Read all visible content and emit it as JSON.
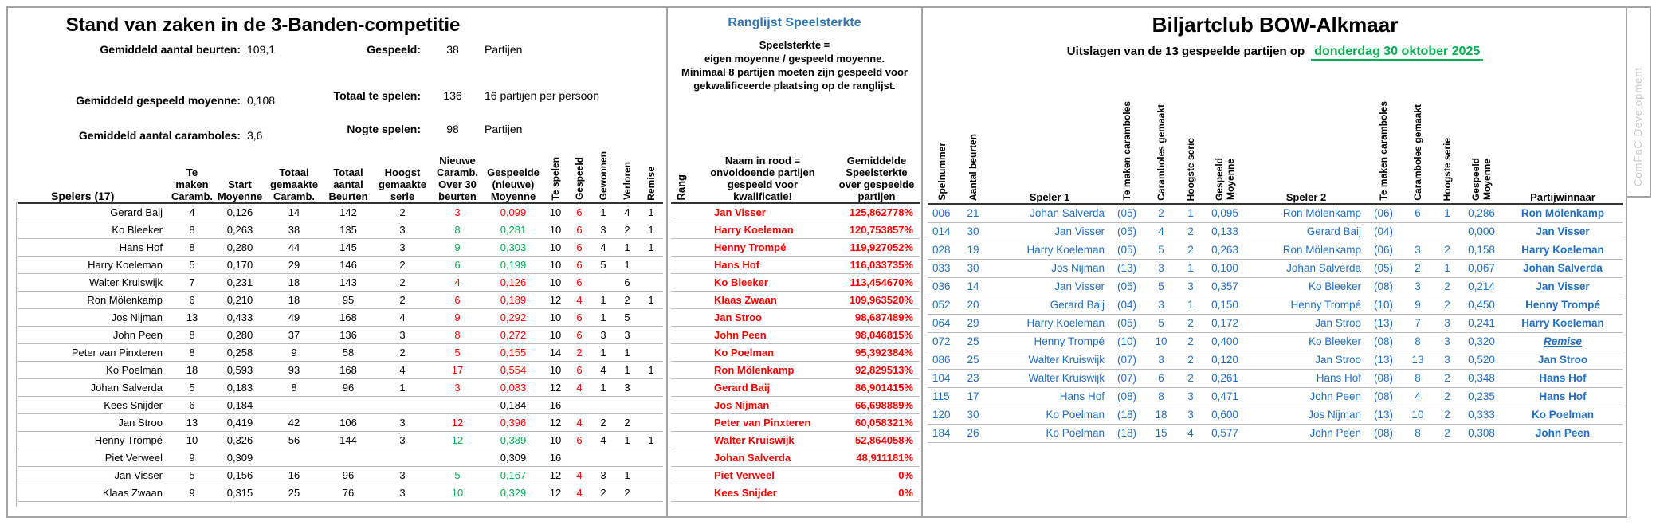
{
  "colors": {
    "red": "#FF0000",
    "green": "#00B050",
    "blue": "#1F6FC5",
    "title_blue": "#2E75B6",
    "date_green": "#00B050",
    "grid_gray": "#BDBDBD",
    "watermark_gray": "#C6C6C6"
  },
  "left_panel": {
    "title": "Stand van zaken in de 3-Banden-competitie",
    "stats": [
      {
        "label": "Gemiddeld aantal beurten:",
        "value": "109,1"
      },
      {
        "label": "Gemiddeld gespeeld moyenne:",
        "value": "0,108"
      },
      {
        "label": "Gemiddeld aantal caramboles:",
        "value": "3,6"
      }
    ],
    "totals": [
      {
        "label": "Gespeeld:",
        "value": "38",
        "note": "Partijen"
      },
      {
        "label": "Totaal te spelen:",
        "value": "136",
        "note": "16 partijen per persoon"
      },
      {
        "label": "Nogte spelen:",
        "value": "98",
        "note": "Partijen"
      }
    ],
    "table": {
      "headers": [
        "Spelers (17)",
        "Te\nmaken\nCaramb.",
        "Start\nMoyenne",
        "Totaal\ngemaakte\nCaramb.",
        "Totaal\naantal\nBeurten",
        "Hoogst\ngemaakte\nserie",
        "Nieuwe\nCaramb.\nOver 30\nbeurten",
        "Gespeelde\n(nieuwe)\nMoyenne"
      ],
      "vertical_headers": [
        "Te spelen",
        "Gespeeld",
        "Gewonnen",
        "Verloren",
        "Remise"
      ],
      "rows": [
        [
          "Gerard Baij",
          "4",
          "0,126",
          "14",
          "142",
          "2",
          {
            "t": "3",
            "c": "red"
          },
          {
            "t": "0,099",
            "c": "red"
          },
          "10",
          {
            "t": "6",
            "c": "red"
          },
          "1",
          "4",
          "1"
        ],
        [
          "Ko Bleeker",
          "8",
          "0,263",
          "38",
          "135",
          "3",
          {
            "t": "8",
            "c": "green"
          },
          {
            "t": "0,281",
            "c": "green"
          },
          "10",
          {
            "t": "6",
            "c": "red"
          },
          "3",
          "2",
          "1"
        ],
        [
          "Hans Hof",
          "8",
          "0,280",
          "44",
          "145",
          "3",
          {
            "t": "9",
            "c": "green"
          },
          {
            "t": "0,303",
            "c": "green"
          },
          "10",
          {
            "t": "6",
            "c": "red"
          },
          "4",
          "1",
          "1"
        ],
        [
          "Harry Koeleman",
          "5",
          "0,170",
          "29",
          "146",
          "2",
          {
            "t": "6",
            "c": "green"
          },
          {
            "t": "0,199",
            "c": "green"
          },
          "10",
          {
            "t": "6",
            "c": "red"
          },
          "5",
          "1",
          ""
        ],
        [
          "Walter Kruiswijk",
          "7",
          "0,231",
          "18",
          "143",
          "2",
          {
            "t": "4",
            "c": "red"
          },
          {
            "t": "0,126",
            "c": "red"
          },
          "10",
          {
            "t": "6",
            "c": "red"
          },
          "",
          "6",
          ""
        ],
        [
          "Ron Mölenkamp",
          "6",
          "0,210",
          "18",
          "95",
          "2",
          {
            "t": "6",
            "c": "red"
          },
          {
            "t": "0,189",
            "c": "red"
          },
          "12",
          {
            "t": "4",
            "c": "red"
          },
          "1",
          "2",
          "1"
        ],
        [
          "Jos Nijman",
          "13",
          "0,433",
          "49",
          "168",
          "4",
          {
            "t": "9",
            "c": "red"
          },
          {
            "t": "0,292",
            "c": "red"
          },
          "10",
          {
            "t": "6",
            "c": "red"
          },
          "1",
          "5",
          ""
        ],
        [
          "John Peen",
          "8",
          "0,280",
          "37",
          "136",
          "3",
          {
            "t": "8",
            "c": "red"
          },
          {
            "t": "0,272",
            "c": "red"
          },
          "10",
          {
            "t": "6",
            "c": "red"
          },
          "3",
          "3",
          ""
        ],
        [
          "Peter van Pinxteren",
          "8",
          "0,258",
          "9",
          "58",
          "2",
          {
            "t": "5",
            "c": "red"
          },
          {
            "t": "0,155",
            "c": "red"
          },
          "14",
          {
            "t": "2",
            "c": "red"
          },
          "1",
          "1",
          ""
        ],
        [
          "Ko Poelman",
          "18",
          "0,593",
          "93",
          "168",
          "4",
          {
            "t": "17",
            "c": "red"
          },
          {
            "t": "0,554",
            "c": "red"
          },
          "10",
          {
            "t": "6",
            "c": "red"
          },
          "4",
          "1",
          "1"
        ],
        [
          "Johan Salverda",
          "5",
          "0,183",
          "8",
          "96",
          "1",
          {
            "t": "3",
            "c": "red"
          },
          {
            "t": "0,083",
            "c": "red"
          },
          "12",
          {
            "t": "4",
            "c": "red"
          },
          "1",
          "3",
          ""
        ],
        [
          "Kees Snijder",
          "6",
          "0,184",
          "",
          "",
          "",
          "",
          "0,184",
          "16",
          "",
          "",
          "",
          ""
        ],
        [
          "Jan Stroo",
          "13",
          "0,419",
          "42",
          "106",
          "3",
          {
            "t": "12",
            "c": "red"
          },
          {
            "t": "0,396",
            "c": "red"
          },
          "12",
          {
            "t": "4",
            "c": "red"
          },
          "2",
          "2",
          ""
        ],
        [
          "Henny Trompé",
          "10",
          "0,326",
          "56",
          "144",
          "3",
          {
            "t": "12",
            "c": "green"
          },
          {
            "t": "0,389",
            "c": "green"
          },
          "10",
          {
            "t": "6",
            "c": "red"
          },
          "4",
          "1",
          "1"
        ],
        [
          "Piet Verweel",
          "9",
          "0,309",
          "",
          "",
          "",
          "",
          "0,309",
          "16",
          "",
          "",
          "",
          ""
        ],
        [
          "Jan Visser",
          "5",
          "0,156",
          "16",
          "96",
          "3",
          {
            "t": "5",
            "c": "green"
          },
          {
            "t": "0,167",
            "c": "green"
          },
          "12",
          {
            "t": "4",
            "c": "red"
          },
          "3",
          "1",
          ""
        ],
        [
          "Klaas Zwaan",
          "9",
          "0,315",
          "25",
          "76",
          "3",
          {
            "t": "10",
            "c": "green"
          },
          {
            "t": "0,329",
            "c": "green"
          },
          "12",
          {
            "t": "4",
            "c": "red"
          },
          "2",
          "2",
          ""
        ]
      ]
    }
  },
  "rank_panel": {
    "title": "Ranglijst Speelsterkte",
    "description": "Speelsterkte =\neigen moyenne / gespeeld moyenne.\nMinimaal 8 partijen moeten zijn gespeeld voor\ngekwalificeerde plaatsing op de ranglijst.",
    "rang_header": "Rang",
    "name_header": "Naam in rood =\nonvoldoende partijen\ngespeeld voor\nkwalificatie!",
    "value_header": "Gemiddelde\nSpeelsterkte\nover gespeelde\npartijen",
    "rows": [
      [
        "",
        "Jan Visser",
        "125,862778%"
      ],
      [
        "",
        "Harry Koeleman",
        "120,753857%"
      ],
      [
        "",
        "Henny Trompé",
        "119,927052%"
      ],
      [
        "",
        "Hans Hof",
        "116,033735%"
      ],
      [
        "",
        "Ko Bleeker",
        "113,454670%"
      ],
      [
        "",
        "Klaas Zwaan",
        "109,963520%"
      ],
      [
        "",
        "Jan Stroo",
        "98,687489%"
      ],
      [
        "",
        "John Peen",
        "98,046815%"
      ],
      [
        "",
        "Ko Poelman",
        "95,392384%"
      ],
      [
        "",
        "Ron Mölenkamp",
        "92,829513%"
      ],
      [
        "",
        "Gerard Baij",
        "86,901415%"
      ],
      [
        "",
        "Jos Nijman",
        "66,698889%"
      ],
      [
        "",
        "Peter van Pinxteren",
        "60,058321%"
      ],
      [
        "",
        "Walter Kruiswijk",
        "52,864058%"
      ],
      [
        "",
        "Johan Salverda",
        "48,911181%"
      ],
      [
        "",
        "Piet Verweel",
        "0%"
      ],
      [
        "",
        "Kees Snijder",
        "0%"
      ]
    ]
  },
  "results_panel": {
    "title": "Biljartclub BOW-Alkmaar",
    "subtitle": "Uitslagen van de 13 gespeelde partijen op",
    "date": "donderdag 30 oktober 2025",
    "watermark": "ComFaC Development",
    "headers": [
      "Spelnummer",
      "Aantal beurten",
      "Speler 1",
      "Te maken caramboles",
      "Caramboles gemaakt",
      "Hoogste serie",
      "Gespeeld\nMoyenne",
      "Speler 2",
      "Te maken caramboles",
      "Caramboles gemaakt",
      "Hoogste serie",
      "Gespeeld\nMoyenne",
      "Partijwinnaar"
    ],
    "rows": [
      [
        "006",
        "21",
        "Johan Salverda",
        "(05)",
        "2",
        "1",
        "0,095",
        "Ron Mölenkamp",
        "(06)",
        "6",
        "1",
        "0,286",
        {
          "t": "Ron Mölenkamp",
          "c": "win"
        }
      ],
      [
        "014",
        "30",
        "Jan Visser",
        "(05)",
        "4",
        "2",
        "0,133",
        "Gerard Baij",
        "(04)",
        "",
        "",
        "0,000",
        {
          "t": "Jan Visser",
          "c": "win"
        }
      ],
      [
        "028",
        "19",
        "Harry Koeleman",
        "(05)",
        "5",
        "2",
        "0,263",
        "Ron Mölenkamp",
        "(06)",
        "3",
        "2",
        "0,158",
        {
          "t": "Harry Koeleman",
          "c": "win"
        }
      ],
      [
        "033",
        "30",
        "Jos Nijman",
        "(13)",
        "3",
        "1",
        "0,100",
        "Johan Salverda",
        "(05)",
        "2",
        "1",
        "0,067",
        {
          "t": "Johan Salverda",
          "c": "win"
        }
      ],
      [
        "036",
        "14",
        "Jan Visser",
        "(05)",
        "5",
        "3",
        "0,357",
        "Ko Bleeker",
        "(08)",
        "3",
        "2",
        "0,214",
        {
          "t": "Jan Visser",
          "c": "win"
        }
      ],
      [
        "052",
        "20",
        "Gerard Baij",
        "(04)",
        "3",
        "1",
        "0,150",
        "Henny Trompé",
        "(10)",
        "9",
        "2",
        "0,450",
        {
          "t": "Henny Trompé",
          "c": "win"
        }
      ],
      [
        "064",
        "29",
        "Harry Koeleman",
        "(05)",
        "5",
        "2",
        "0,172",
        "Jan Stroo",
        "(13)",
        "7",
        "3",
        "0,241",
        {
          "t": "Harry Koeleman",
          "c": "win"
        }
      ],
      [
        "072",
        "25",
        "Henny Trompé",
        "(10)",
        "10",
        "2",
        "0,400",
        "Ko Bleeker",
        "(08)",
        "8",
        "3",
        "0,320",
        {
          "t": "Remise",
          "c": "remise"
        }
      ],
      [
        "086",
        "25",
        "Walter Kruiswijk",
        "(07)",
        "3",
        "2",
        "0,120",
        "Jan Stroo",
        "(13)",
        "13",
        "3",
        "0,520",
        {
          "t": "Jan Stroo",
          "c": "win"
        }
      ],
      [
        "104",
        "23",
        "Walter Kruiswijk",
        "(07)",
        "6",
        "2",
        "0,261",
        "Hans Hof",
        "(08)",
        "8",
        "2",
        "0,348",
        {
          "t": "Hans Hof",
          "c": "win"
        }
      ],
      [
        "115",
        "17",
        "Hans Hof",
        "(08)",
        "8",
        "3",
        "0,471",
        "John Peen",
        "(08)",
        "4",
        "2",
        "0,235",
        {
          "t": "Hans Hof",
          "c": "win"
        }
      ],
      [
        "120",
        "30",
        "Ko Poelman",
        "(18)",
        "18",
        "3",
        "0,600",
        "Jos Nijman",
        "(13)",
        "10",
        "2",
        "0,333",
        {
          "t": "Ko Poelman",
          "c": "win"
        }
      ],
      [
        "184",
        "26",
        "Ko Poelman",
        "(18)",
        "15",
        "4",
        "0,577",
        "John Peen",
        "(08)",
        "8",
        "2",
        "0,308",
        {
          "t": "John Peen",
          "c": "win"
        }
      ]
    ]
  }
}
